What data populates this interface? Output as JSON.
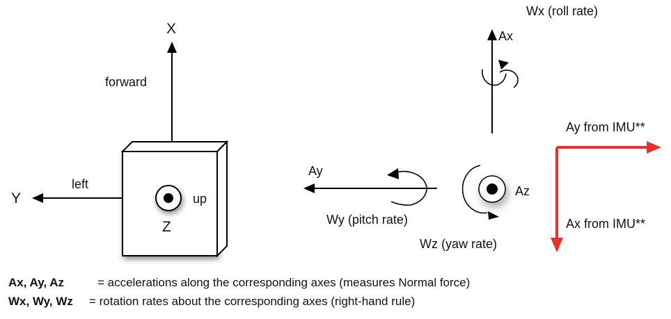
{
  "body_frame": {
    "axis_x": "X",
    "axis_y": "Y",
    "axis_z": "Z",
    "direction_x": "forward",
    "direction_y": "left",
    "direction_z": "up"
  },
  "rates_frame": {
    "ax_label": "Ax",
    "ay_label": "Ay",
    "az_label": "Az",
    "wx_label": "Wx (roll rate)",
    "wy_label": "Wy (pitch rate)",
    "wz_label": "Wz (yaw rate)"
  },
  "imu_frame": {
    "ay_label": "Ay from IMU**",
    "ax_label": "Ax from IMU**",
    "arrow_color": "#e8312a"
  },
  "legend": {
    "accel_key": "Ax, Ay, Az",
    "accel_text": "= accelerations along the corresponding axes (measures Normal force)",
    "rate_key": "Wx, Wy, Wz",
    "rate_text": "= rotation rates about the corresponding axes (right-hand rule)"
  }
}
